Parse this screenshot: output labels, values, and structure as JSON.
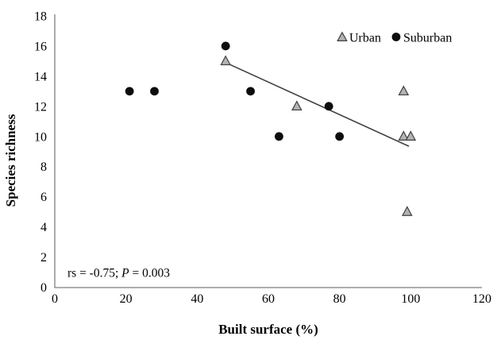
{
  "chart_data": {
    "type": "scatter",
    "title": "",
    "xlabel": "Built surface (%)",
    "ylabel": "Species richness",
    "xlim": [
      0,
      120
    ],
    "ylim": [
      0,
      18
    ],
    "xticks": [
      0,
      20,
      40,
      60,
      80,
      100,
      120
    ],
    "yticks": [
      0,
      2,
      4,
      6,
      8,
      10,
      12,
      14,
      16,
      18
    ],
    "grid": false,
    "legend_position": "top-right-inside",
    "series": [
      {
        "name": "Urban",
        "marker": "triangle",
        "marker_fill": "#b3b3b3",
        "marker_stroke": "#404040",
        "points": [
          [
            48,
            15
          ],
          [
            68,
            12
          ],
          [
            98,
            13
          ],
          [
            98,
            10
          ],
          [
            100,
            10
          ],
          [
            99,
            5
          ]
        ]
      },
      {
        "name": "Suburban",
        "marker": "circle",
        "marker_fill": "#0d0d0d",
        "points": [
          [
            21,
            13
          ],
          [
            28,
            13
          ],
          [
            48,
            16
          ],
          [
            55,
            13
          ],
          [
            63,
            10
          ],
          [
            77,
            12
          ],
          [
            80,
            10
          ]
        ]
      }
    ],
    "trendline": {
      "x1": 48,
      "y1": 14.9,
      "x2": 99.5,
      "y2": 9.35,
      "color": "#404040"
    },
    "annotation": {
      "prefix": "rs = -0.75; ",
      "italic": "P",
      "suffix": " = 0.003"
    },
    "axis_color": "#7f7f7f",
    "text_color": "#000000"
  }
}
